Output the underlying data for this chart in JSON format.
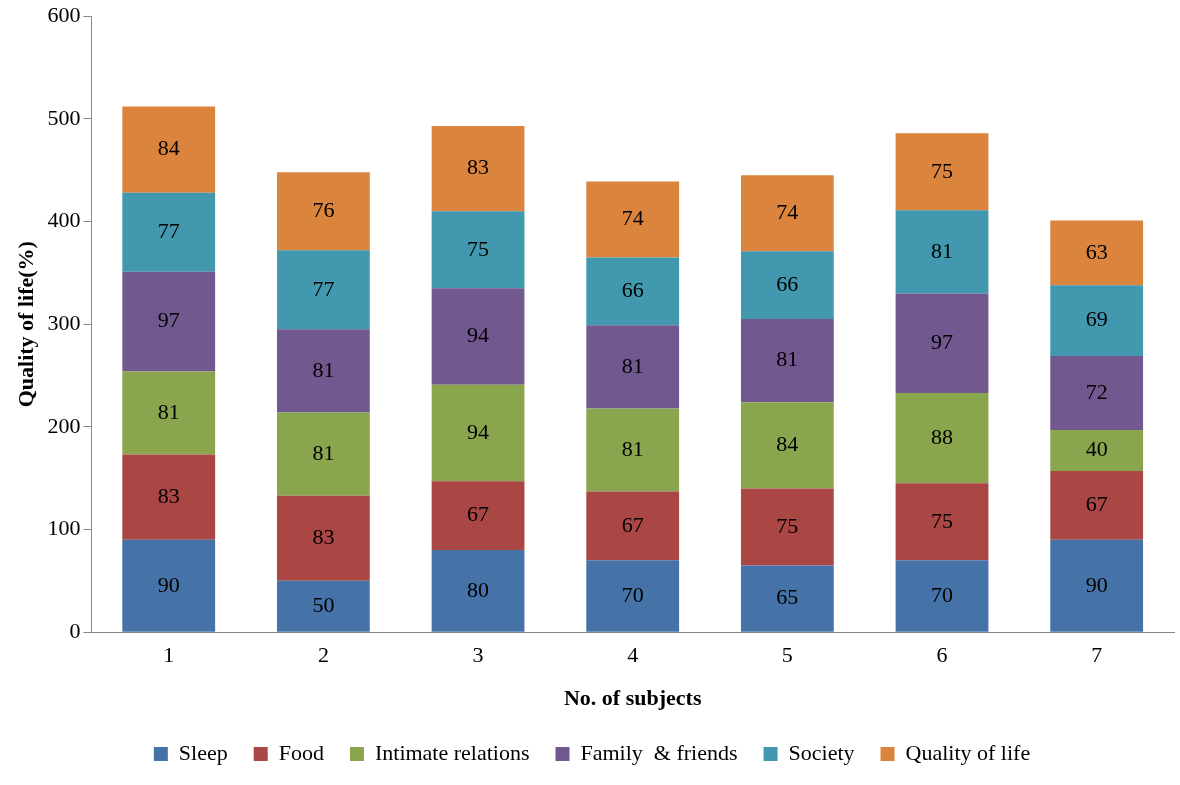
{
  "chart_data": {
    "type": "bar",
    "stacked": true,
    "xlabel": "No. of subjects",
    "ylabel": "Quality of life(%)",
    "categories": [
      "1",
      "2",
      "3",
      "4",
      "5",
      "6",
      "7"
    ],
    "series": [
      {
        "name": "Sleep",
        "color": "#4572a7",
        "values": [
          90,
          50,
          80,
          70,
          65,
          70,
          90
        ]
      },
      {
        "name": "Food",
        "color": "#aa4643",
        "values": [
          83,
          83,
          67,
          67,
          75,
          75,
          67
        ]
      },
      {
        "name": "Intimate relations",
        "color": "#89a54e",
        "values": [
          81,
          81,
          94,
          81,
          84,
          88,
          40
        ]
      },
      {
        "name": "Family  & friends",
        "color": "#71588f",
        "values": [
          97,
          81,
          94,
          81,
          81,
          97,
          72
        ]
      },
      {
        "name": "Society",
        "color": "#4198af",
        "values": [
          77,
          77,
          75,
          66,
          66,
          81,
          69
        ]
      },
      {
        "name": "Quality of life",
        "color": "#db843d",
        "values": [
          84,
          76,
          83,
          74,
          74,
          75,
          63
        ]
      }
    ],
    "ylim": [
      0,
      600
    ],
    "yticks": [
      0,
      100,
      200,
      300,
      400,
      500,
      600
    ],
    "grid": false,
    "legend": "bottom",
    "data_labels": true
  }
}
